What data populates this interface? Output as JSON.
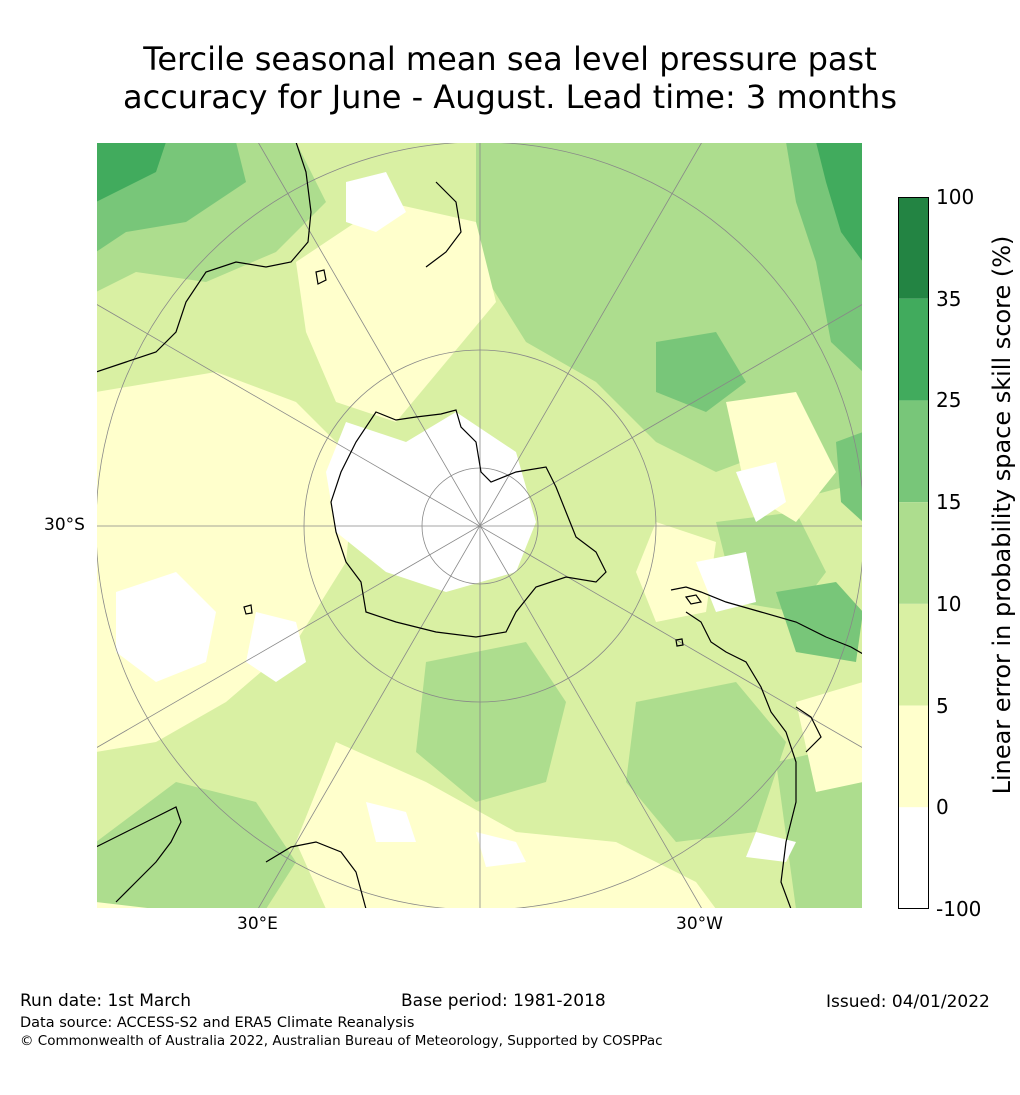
{
  "title_line1": "Tercile seasonal mean sea level pressure past",
  "title_line2": "accuracy for June - August. Lead time: 3 months",
  "map_labels": {
    "lat_30s": "30°S",
    "lon_30e": "30°E",
    "lon_30w": "30°W"
  },
  "colorbar": {
    "label": "Linear error in probability space skill score (%)",
    "ticks": [
      "100",
      "35",
      "25",
      "15",
      "10",
      "5",
      "0",
      "-100"
    ],
    "colors": [
      "#238443",
      "#41ab5d",
      "#78c679",
      "#addd8e",
      "#d9f0a3",
      "#ffffcc",
      "#ffffff"
    ]
  },
  "colors": {
    "coast": "#000000",
    "grid": "#888888"
  },
  "footer": {
    "run_date": "Run date: 1st March",
    "base_period": "Base period: 1981-2018",
    "issued": "Issued: 04/01/2022",
    "data_source": "Data source: ACCESS-S2 and ERA5 Climate Reanalysis",
    "copyright": "© Commonwealth of Australia 2022, Australian Bureau of Meteorology, Supported by COSPPac"
  }
}
